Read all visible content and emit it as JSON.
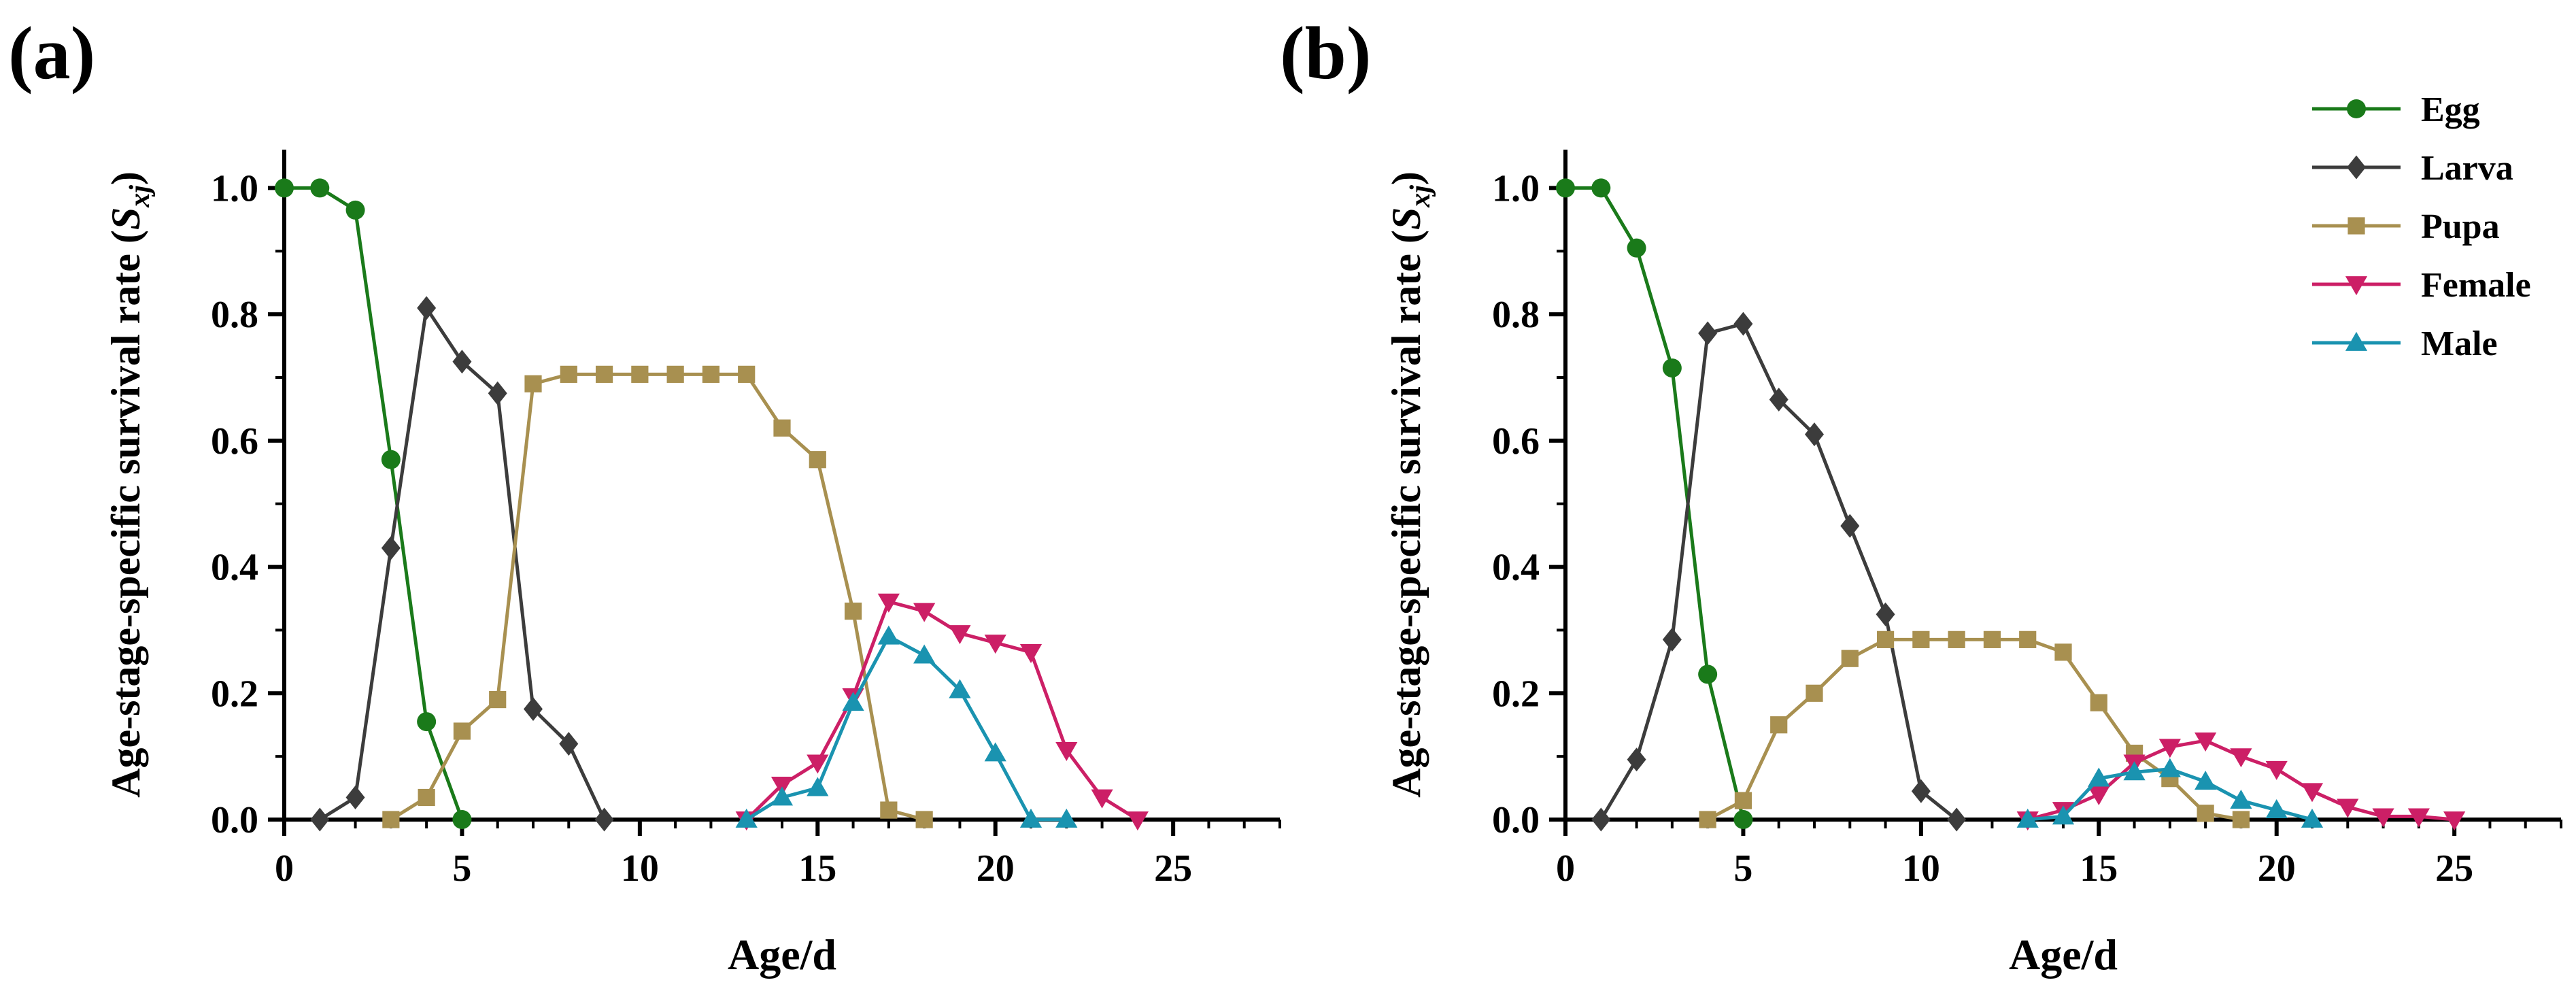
{
  "chart_data": [
    {
      "panel_label": "(a)",
      "type": "line",
      "xlabel": "Age/d",
      "ylabel_main": "Age-stage-specific survival  rate (",
      "ylabel_symbol": "S",
      "ylabel_subscript": "xj",
      "ylabel_close": ")",
      "xlim": [
        0,
        28
      ],
      "ylim": [
        0,
        1.05
      ],
      "xticks": [
        0,
        5,
        10,
        15,
        20,
        25
      ],
      "yticks": [
        0.0,
        0.2,
        0.4,
        0.6,
        0.8,
        1.0
      ],
      "xtick_labels": [
        "0",
        "5",
        "10",
        "15",
        "20",
        "25"
      ],
      "ytick_labels": [
        "0.0",
        "0.2",
        "0.4",
        "0.6",
        "0.8",
        "1.0"
      ],
      "grid": false,
      "series": [
        {
          "name": "Egg",
          "marker": "circle",
          "color": "#1a7a1a",
          "x": [
            0,
            1,
            2,
            3,
            4,
            5
          ],
          "y": [
            1.0,
            1.0,
            0.965,
            0.57,
            0.155,
            0.0
          ]
        },
        {
          "name": "Larva",
          "marker": "diamond",
          "color": "#3c3c3c",
          "x": [
            1,
            2,
            3,
            4,
            5,
            6,
            7,
            8,
            9
          ],
          "y": [
            0.0,
            0.035,
            0.43,
            0.81,
            0.725,
            0.675,
            0.175,
            0.12,
            0.0
          ]
        },
        {
          "name": "Pupa",
          "marker": "square",
          "color": "#a89050",
          "x": [
            3,
            4,
            5,
            6,
            7,
            8,
            9,
            10,
            11,
            12,
            13,
            14,
            15,
            16,
            17,
            18
          ],
          "y": [
            0.0,
            0.035,
            0.14,
            0.19,
            0.69,
            0.705,
            0.705,
            0.705,
            0.705,
            0.705,
            0.705,
            0.62,
            0.57,
            0.33,
            0.015,
            0.0
          ]
        },
        {
          "name": "Female",
          "marker": "triangle-down",
          "color": "#cc1f66",
          "x": [
            13,
            14,
            15,
            16,
            17,
            18,
            19,
            20,
            21,
            22,
            23,
            24
          ],
          "y": [
            0.0,
            0.055,
            0.09,
            0.195,
            0.345,
            0.33,
            0.295,
            0.28,
            0.265,
            0.11,
            0.035,
            0.0
          ]
        },
        {
          "name": "Male",
          "marker": "triangle-up",
          "color": "#1a93b0",
          "x": [
            13,
            14,
            15,
            16,
            17,
            18,
            19,
            20,
            21,
            22
          ],
          "y": [
            0.0,
            0.035,
            0.05,
            0.185,
            0.29,
            0.26,
            0.205,
            0.105,
            0.0,
            0.0
          ]
        }
      ]
    },
    {
      "panel_label": "(b)",
      "type": "line",
      "xlabel": "Age/d",
      "ylabel_main": "Age-stage-specific survival  rate (",
      "ylabel_symbol": "S",
      "ylabel_subscript": "xj",
      "ylabel_close": ")",
      "xlim": [
        0,
        28
      ],
      "ylim": [
        0,
        1.05
      ],
      "xticks": [
        0,
        5,
        10,
        15,
        20,
        25
      ],
      "yticks": [
        0.0,
        0.2,
        0.4,
        0.6,
        0.8,
        1.0
      ],
      "xtick_labels": [
        "0",
        "5",
        "10",
        "15",
        "20",
        "25"
      ],
      "ytick_labels": [
        "0.0",
        "0.2",
        "0.4",
        "0.6",
        "0.8",
        "1.0"
      ],
      "grid": false,
      "legend_position": "top-right",
      "series": [
        {
          "name": "Egg",
          "marker": "circle",
          "color": "#1a7a1a",
          "x": [
            0,
            1,
            2,
            3,
            4,
            5
          ],
          "y": [
            1.0,
            1.0,
            0.905,
            0.715,
            0.23,
            0.0
          ]
        },
        {
          "name": "Larva",
          "marker": "diamond",
          "color": "#3c3c3c",
          "x": [
            1,
            2,
            3,
            4,
            5,
            6,
            7,
            8,
            9,
            10,
            11
          ],
          "y": [
            0.0,
            0.095,
            0.285,
            0.77,
            0.785,
            0.665,
            0.61,
            0.465,
            0.325,
            0.045,
            0.0
          ]
        },
        {
          "name": "Pupa",
          "marker": "square",
          "color": "#a89050",
          "x": [
            4,
            5,
            6,
            7,
            8,
            9,
            10,
            11,
            12,
            13,
            14,
            15,
            16,
            17,
            18,
            19
          ],
          "y": [
            0.0,
            0.03,
            0.15,
            0.2,
            0.255,
            0.285,
            0.285,
            0.285,
            0.285,
            0.285,
            0.265,
            0.185,
            0.105,
            0.065,
            0.01,
            0.0
          ]
        },
        {
          "name": "Female",
          "marker": "triangle-down",
          "color": "#cc1f66",
          "x": [
            13,
            14,
            15,
            16,
            17,
            18,
            19,
            20,
            21,
            22,
            23,
            24,
            25
          ],
          "y": [
            0.0,
            0.015,
            0.04,
            0.09,
            0.115,
            0.125,
            0.1,
            0.08,
            0.045,
            0.02,
            0.005,
            0.005,
            0.0
          ]
        },
        {
          "name": "Male",
          "marker": "triangle-up",
          "color": "#1a93b0",
          "x": [
            13,
            14,
            15,
            16,
            17,
            18,
            19,
            20,
            21
          ],
          "y": [
            0.0,
            0.005,
            0.065,
            0.075,
            0.08,
            0.06,
            0.03,
            0.015,
            0.0
          ]
        }
      ]
    }
  ],
  "legend": {
    "items": [
      {
        "name": "Egg",
        "marker": "circle",
        "color": "#1a7a1a"
      },
      {
        "name": "Larva",
        "marker": "diamond",
        "color": "#3c3c3c"
      },
      {
        "name": "Pupa",
        "marker": "square",
        "color": "#a89050"
      },
      {
        "name": "Female",
        "marker": "triangle-down",
        "color": "#cc1f66"
      },
      {
        "name": "Male",
        "marker": "triangle-up",
        "color": "#1a93b0"
      }
    ]
  }
}
